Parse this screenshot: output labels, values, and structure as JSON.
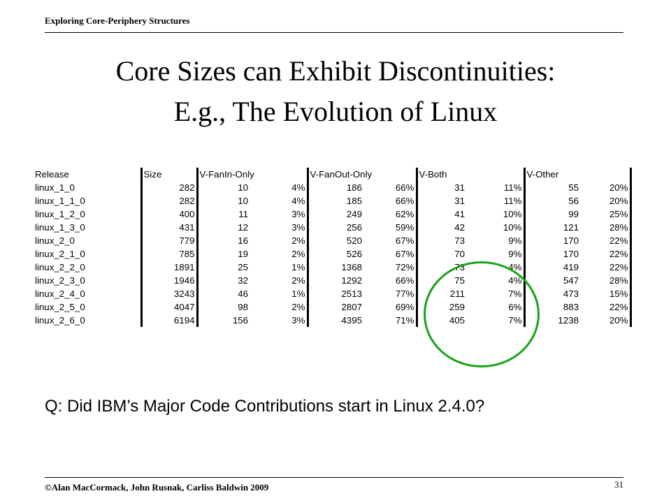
{
  "header": {
    "label": "Exploring Core-Periphery Structures"
  },
  "title": {
    "line1": "Core Sizes can Exhibit Discontinuities:",
    "line2": "E.g., The Evolution of Linux"
  },
  "table": {
    "headers": [
      "Release",
      "Size",
      "V-FanIn-Only",
      "V-FanOut-Only",
      "V-Both",
      "V-Other"
    ],
    "rows": [
      [
        "linux_1_0",
        "282",
        "10",
        "4%",
        "186",
        "66%",
        "31",
        "11%",
        "55",
        "20%"
      ],
      [
        "linux_1_1_0",
        "282",
        "10",
        "4%",
        "185",
        "66%",
        "31",
        "11%",
        "56",
        "20%"
      ],
      [
        "linux_1_2_0",
        "400",
        "11",
        "3%",
        "249",
        "62%",
        "41",
        "10%",
        "99",
        "25%"
      ],
      [
        "linux_1_3_0",
        "431",
        "12",
        "3%",
        "256",
        "59%",
        "42",
        "10%",
        "121",
        "28%"
      ],
      [
        "linux_2_0",
        "779",
        "16",
        "2%",
        "520",
        "67%",
        "73",
        "9%",
        "170",
        "22%"
      ],
      [
        "linux_2_1_0",
        "785",
        "19",
        "2%",
        "526",
        "67%",
        "70",
        "9%",
        "170",
        "22%"
      ],
      [
        "linux_2_2_0",
        "1891",
        "25",
        "1%",
        "1368",
        "72%",
        "73",
        "4%",
        "419",
        "22%"
      ],
      [
        "linux_2_3_0",
        "1946",
        "32",
        "2%",
        "1292",
        "66%",
        "75",
        "4%",
        "547",
        "28%"
      ],
      [
        "linux_2_4_0",
        "3243",
        "46",
        "1%",
        "2513",
        "77%",
        "211",
        "7%",
        "473",
        "15%"
      ],
      [
        "linux_2_5_0",
        "4047",
        "98",
        "2%",
        "2807",
        "69%",
        "259",
        "6%",
        "883",
        "22%"
      ],
      [
        "linux_2_6_0",
        "6194",
        "156",
        "3%",
        "4395",
        "71%",
        "405",
        "7%",
        "1238",
        "20%"
      ]
    ]
  },
  "annotation": {
    "circle_color": "#17a317"
  },
  "question": "Q:  Did IBM’s Major Code Contributions start in Linux 2.4.0?",
  "footer": {
    "copyright": "©Alan MacCormack, John Rusnak, Carliss Baldwin 2009",
    "page_number": "31"
  }
}
